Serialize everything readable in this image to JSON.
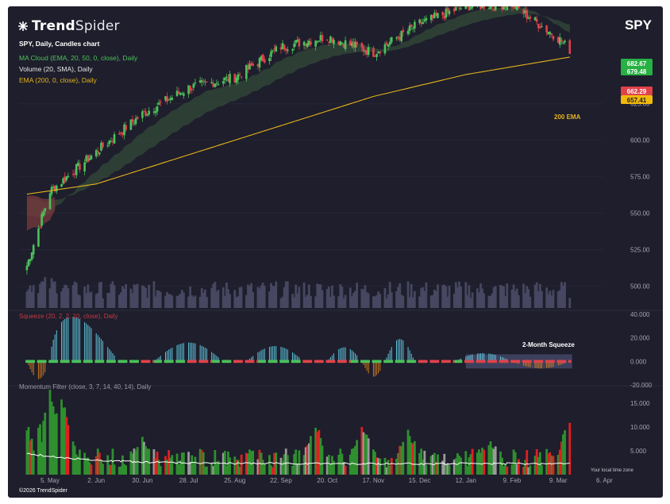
{
  "brand": {
    "name_bold": "Trend",
    "name_rest": "Spider",
    "copyright": "©2026 TrendSpider"
  },
  "ticker": "SPY",
  "chart_header": {
    "title": "SPY, Daily, Candles chart",
    "ma_cloud": "MA Cloud (EMA, 20, 50, 0, close), Daily",
    "volume": "Volume (20, SMA), Daily",
    "ema": "EMA (200, 0, close), Daily"
  },
  "indicator_labels": {
    "squeeze": "Squeeze (20, 2, 2, 10, close), Daily",
    "momentum": "Momentum Filter (close, 3, 7, 14, 40, 14), Daily"
  },
  "annotations": {
    "ema_label": "200 EMA",
    "squeeze_label": "2-Month Squeeze",
    "local_time": "Your local time zone"
  },
  "colors": {
    "up": "#4bc25a",
    "down": "#e0424a",
    "ema200": "#e5b41c",
    "cloud": "#3a5a3e",
    "squeeze_up": "#5fc8e0",
    "squeeze_down": "#d07a1e",
    "mom_up": "#2f8f2f",
    "mom_down": "#e02020",
    "mom_neutral": "#9a9a9a"
  },
  "chart_data": [
    {
      "type": "candlestick",
      "title": "SPY, Daily, Candles chart",
      "ylim": [
        485,
        670
      ],
      "y_ticks": [
        "625.00",
        "600.00",
        "575.00",
        "550.00",
        "525.00",
        "500.00"
      ],
      "x_ticks": [
        "5. May",
        "2. Jun",
        "30. Jun",
        "28. Jul",
        "25. Aug",
        "22. Sep",
        "20. Oct",
        "17. Nov",
        "15. Dec",
        "12. Jan",
        "9. Feb",
        "9. Mar",
        "6. Apr"
      ],
      "price_badges": [
        {
          "label": "682.67",
          "color": "#27b043"
        },
        {
          "label": "679.48",
          "color": "#27b043"
        },
        {
          "label": "662.29",
          "color": "#e0424a"
        },
        {
          "label": "657.41",
          "color": "#f0b90b"
        }
      ],
      "close_anchors": [
        {
          "date": "Apr 21",
          "close": 514
        },
        {
          "date": "May 5",
          "close": 565
        },
        {
          "date": "Jun 2",
          "close": 592
        },
        {
          "date": "Jun 30",
          "close": 618
        },
        {
          "date": "Jul 28",
          "close": 636
        },
        {
          "date": "Aug 25",
          "close": 643
        },
        {
          "date": "Sep 22",
          "close": 664
        },
        {
          "date": "Oct 20",
          "close": 671
        },
        {
          "date": "Nov 17",
          "close": 660
        },
        {
          "date": "Dec 15",
          "close": 680
        },
        {
          "date": "Jan 12",
          "close": 692
        },
        {
          "date": "Feb 9",
          "close": 693
        },
        {
          "date": "Mar 9",
          "close": 670
        },
        {
          "date": "Mar 16",
          "close": 662
        }
      ],
      "ema200_anchors": [
        {
          "date": "Apr 21",
          "value": 563
        },
        {
          "date": "Jun 2",
          "value": 570
        },
        {
          "date": "Jul 28",
          "value": 590
        },
        {
          "date": "Sep 22",
          "value": 610
        },
        {
          "date": "Nov 17",
          "value": 630
        },
        {
          "date": "Jan 12",
          "value": 645
        },
        {
          "date": "Mar 16",
          "value": 657
        }
      ]
    },
    {
      "type": "bar",
      "title": "Squeeze (20, 2, 2, 10, close), Daily",
      "ylim": [
        -20,
        40
      ],
      "y_ticks": [
        "40.000",
        "20.000",
        "0.000",
        "-20.000"
      ],
      "bumps": [
        {
          "start_date": "Apr 21",
          "end_date": "May 5",
          "peak": -15
        },
        {
          "start_date": "May 5",
          "end_date": "Jun 16",
          "peak": 38
        },
        {
          "start_date": "Jul 7",
          "end_date": "Aug 18",
          "peak": 16
        },
        {
          "start_date": "Sep 1",
          "end_date": "Oct 6",
          "peak": 13
        },
        {
          "start_date": "Oct 20",
          "end_date": "Nov 10",
          "peak": 12
        },
        {
          "start_date": "Nov 10",
          "end_date": "Nov 24",
          "peak": -13
        },
        {
          "start_date": "Nov 24",
          "end_date": "Dec 12",
          "peak": 19
        },
        {
          "start_date": "Jan 5",
          "end_date": "Feb 9",
          "peak": 7
        },
        {
          "start_date": "Feb 9",
          "end_date": "Mar 16",
          "peak": -6
        }
      ]
    },
    {
      "type": "bar",
      "title": "Momentum Filter (close, 3, 7, 14, 40, 14), Daily",
      "ylim": [
        0,
        18
      ],
      "y_ticks": [
        "15.000",
        "10.000",
        "5.000"
      ]
    }
  ]
}
